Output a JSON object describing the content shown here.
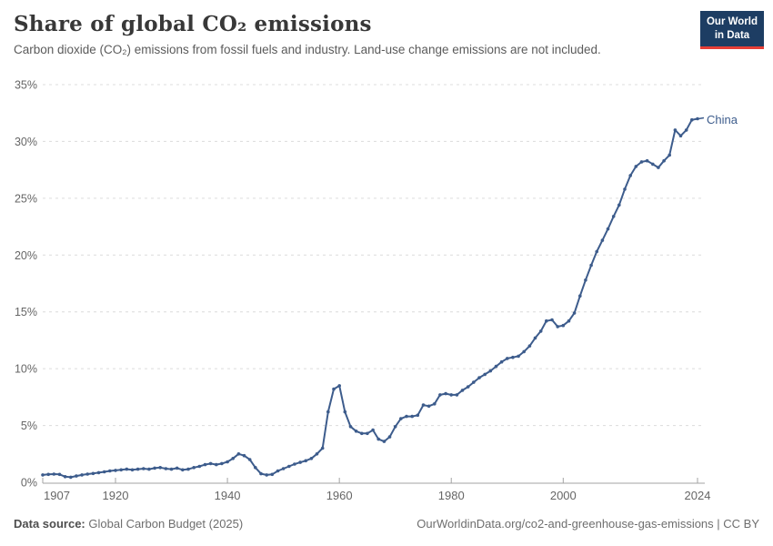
{
  "header": {
    "title": "Share of global CO₂ emissions",
    "subtitle": "Carbon dioxide (CO₂) emissions from fossil fuels and industry. Land-use change emissions are not included."
  },
  "logo": {
    "line1": "Our World",
    "line2": "in Data"
  },
  "footer": {
    "data_source_label": "Data source:",
    "data_source": "Global Carbon Budget (2025)",
    "citation": "OurWorldinData.org/co2-and-greenhouse-gas-emissions | CC BY"
  },
  "colors": {
    "series": "#3d5c8c",
    "grid": "#dcdcdc",
    "axis": "#a3a3a3",
    "tick_text": "#666666",
    "logo_bg": "#1d3d63",
    "logo_bar": "#e63e36"
  },
  "chart_data": {
    "type": "line",
    "title": "Share of global CO₂ emissions",
    "subtitle": "Carbon dioxide (CO₂) emissions from fossil fuels and industry. Land-use change emissions are not included.",
    "xlabel": "",
    "ylabel": "",
    "ylim": [
      0,
      35
    ],
    "yticks": [
      0,
      5,
      10,
      15,
      20,
      25,
      30,
      35
    ],
    "ytick_format": "percent",
    "xticks": [
      1907,
      1920,
      1940,
      1960,
      1980,
      2000,
      2024
    ],
    "grid": "horizontal-dashed",
    "legend_position": "end-of-line",
    "series": [
      {
        "name": "China",
        "color": "#3d5c8c",
        "start_year": 1907,
        "end_year": 2024,
        "values": [
          0.65,
          0.7,
          0.72,
          0.7,
          0.5,
          0.45,
          0.55,
          0.65,
          0.72,
          0.78,
          0.85,
          0.92,
          1.0,
          1.05,
          1.1,
          1.15,
          1.1,
          1.15,
          1.2,
          1.15,
          1.25,
          1.3,
          1.2,
          1.15,
          1.25,
          1.1,
          1.15,
          1.3,
          1.4,
          1.55,
          1.65,
          1.55,
          1.65,
          1.8,
          2.1,
          2.5,
          2.35,
          2.0,
          1.3,
          0.75,
          0.65,
          0.7,
          1.0,
          1.2,
          1.4,
          1.6,
          1.75,
          1.9,
          2.1,
          2.5,
          3.0,
          6.2,
          8.2,
          8.5,
          6.2,
          4.9,
          4.5,
          4.3,
          4.3,
          4.6,
          3.8,
          3.6,
          4.0,
          4.9,
          5.6,
          5.8,
          5.8,
          5.9,
          6.8,
          6.7,
          6.9,
          7.7,
          7.8,
          7.7,
          7.7,
          8.1,
          8.4,
          8.8,
          9.2,
          9.5,
          9.8,
          10.2,
          10.6,
          10.9,
          11.0,
          11.1,
          11.5,
          12.0,
          12.7,
          13.3,
          14.2,
          14.3,
          13.7,
          13.8,
          14.2,
          14.9,
          16.4,
          17.8,
          19.1,
          20.3,
          21.3,
          22.3,
          23.4,
          24.4,
          25.8,
          27.0,
          27.8,
          28.2,
          28.3,
          28.0,
          27.7,
          28.3,
          28.8,
          31.0,
          30.5,
          31.0,
          31.9,
          32.0
        ]
      }
    ]
  }
}
